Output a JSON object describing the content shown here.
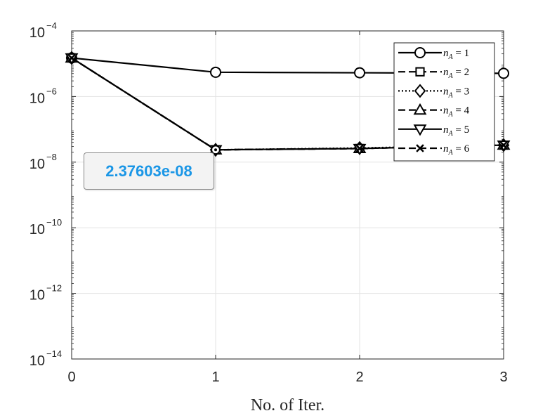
{
  "chart_data": {
    "type": "line",
    "xlabel": "No. of Iter.",
    "ylabel": "",
    "title": "",
    "x": [
      0,
      1,
      2,
      3
    ],
    "xlim": [
      0,
      3
    ],
    "ylim": [
      1e-14,
      0.0001
    ],
    "yscale": "log",
    "x_ticks": [
      "0",
      "1",
      "2",
      "3"
    ],
    "y_ticks": [
      {
        "base": "10",
        "exp": "−14"
      },
      {
        "base": "10",
        "exp": "−12"
      },
      {
        "base": "10",
        "exp": "−10"
      },
      {
        "base": "10",
        "exp": "−8"
      },
      {
        "base": "10",
        "exp": "−6"
      },
      {
        "base": "10",
        "exp": "−4"
      }
    ],
    "grid": true,
    "legend_position": "top-right",
    "series": [
      {
        "name_var": "n",
        "name_sub": "A",
        "name_rest": " = 1",
        "marker": "circle",
        "line": "solid",
        "values": [
          1.5e-05,
          5.5e-06,
          5.3e-06,
          5.1e-06
        ]
      },
      {
        "name_var": "n",
        "name_sub": "A",
        "name_rest": " = 2",
        "marker": "square",
        "line": "dashed",
        "values": [
          1.5e-05,
          2.37603e-08,
          2.6e-08,
          3.3e-08
        ]
      },
      {
        "name_var": "n",
        "name_sub": "A",
        "name_rest": " = 3",
        "marker": "diamond",
        "line": "dotted",
        "values": [
          1.5e-05,
          2.37603e-08,
          2.7e-08,
          3.3e-08
        ]
      },
      {
        "name_var": "n",
        "name_sub": "A",
        "name_rest": " = 4",
        "marker": "triangle-up",
        "line": "dashed",
        "values": [
          1.5e-05,
          2.37603e-08,
          2.6e-08,
          3.3e-08
        ]
      },
      {
        "name_var": "n",
        "name_sub": "A",
        "name_rest": " = 5",
        "marker": "triangle-down",
        "line": "solid",
        "values": [
          1.5e-05,
          2.37603e-08,
          2.6e-08,
          3.3e-08
        ]
      },
      {
        "name_var": "n",
        "name_sub": "A",
        "name_rest": " = 6",
        "marker": "x",
        "line": "dashed",
        "values": [
          1.5e-05,
          2.37603e-08,
          2.6e-08,
          3.3e-08
        ]
      }
    ],
    "datatip": {
      "text": "2.37603e-08",
      "x": 1,
      "y": 2.37603e-08
    }
  }
}
